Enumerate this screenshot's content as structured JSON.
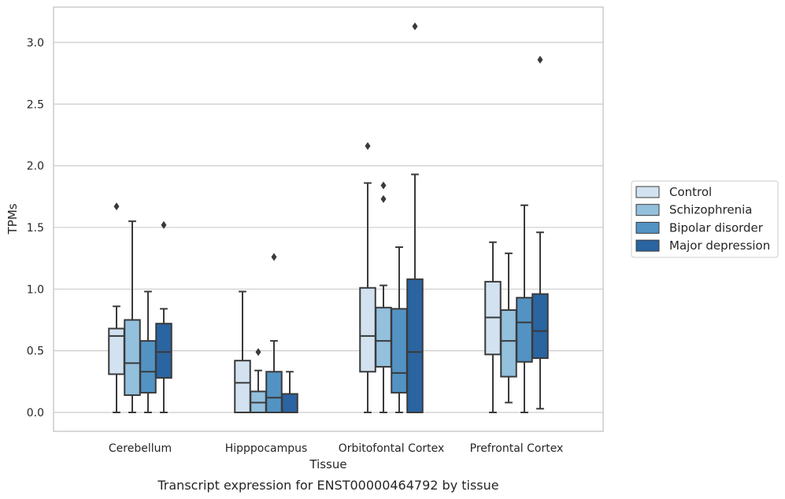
{
  "caption": "Transcript expression for ENST00000464792 by tissue",
  "colors": {
    "Control": "#d2e2f0",
    "Schizophrenia": "#93c0dd",
    "Bipolar disorder": "#5293c4",
    "Major depression": "#2a64a1",
    "stroke": "#3a3a3a",
    "grid": "#cccccc",
    "background": "#ffffff"
  },
  "chart_data": {
    "type": "boxplot",
    "title": "",
    "xlabel": "Tissue",
    "ylabel": "TPMs",
    "ylim": [
      -0.15,
      3.3
    ],
    "yticks": [
      0.0,
      0.5,
      1.0,
      1.5,
      2.0,
      2.5,
      3.0
    ],
    "ytick_labels": [
      "0.0",
      "0.5",
      "1.0",
      "1.5",
      "2.0",
      "2.5",
      "3.0"
    ],
    "grid": true,
    "legend_position": "right",
    "categories": [
      "Cerebellum",
      "Hipppocampus",
      "Orbitofontal Cortex",
      "Prefrontal Cortex"
    ],
    "series": [
      {
        "name": "Control",
        "boxes": [
          {
            "whisker_low": 0.0,
            "q1": 0.31,
            "median": 0.62,
            "q3": 0.68,
            "whisker_high": 0.86,
            "outliers": [
              1.67
            ]
          },
          {
            "whisker_low": 0.0,
            "q1": 0.0,
            "median": 0.24,
            "q3": 0.42,
            "whisker_high": 0.98,
            "outliers": []
          },
          {
            "whisker_low": 0.0,
            "q1": 0.33,
            "median": 0.62,
            "q3": 1.01,
            "whisker_high": 1.86,
            "outliers": [
              2.16
            ]
          },
          {
            "whisker_low": 0.0,
            "q1": 0.47,
            "median": 0.77,
            "q3": 1.06,
            "whisker_high": 1.38,
            "outliers": []
          }
        ]
      },
      {
        "name": "Schizophrenia",
        "boxes": [
          {
            "whisker_low": 0.0,
            "q1": 0.14,
            "median": 0.4,
            "q3": 0.75,
            "whisker_high": 1.55,
            "outliers": []
          },
          {
            "whisker_low": 0.0,
            "q1": 0.0,
            "median": 0.08,
            "q3": 0.17,
            "whisker_high": 0.34,
            "outliers": [
              0.49
            ]
          },
          {
            "whisker_low": 0.0,
            "q1": 0.37,
            "median": 0.58,
            "q3": 0.85,
            "whisker_high": 1.03,
            "outliers": [
              1.73,
              1.84
            ]
          },
          {
            "whisker_low": 0.08,
            "q1": 0.29,
            "median": 0.58,
            "q3": 0.83,
            "whisker_high": 1.29,
            "outliers": []
          }
        ]
      },
      {
        "name": "Bipolar disorder",
        "boxes": [
          {
            "whisker_low": 0.0,
            "q1": 0.16,
            "median": 0.33,
            "q3": 0.58,
            "whisker_high": 0.98,
            "outliers": []
          },
          {
            "whisker_low": 0.0,
            "q1": 0.0,
            "median": 0.12,
            "q3": 0.33,
            "whisker_high": 0.58,
            "outliers": [
              1.26
            ]
          },
          {
            "whisker_low": 0.0,
            "q1": 0.16,
            "median": 0.32,
            "q3": 0.84,
            "whisker_high": 1.34,
            "outliers": []
          },
          {
            "whisker_low": 0.0,
            "q1": 0.41,
            "median": 0.73,
            "q3": 0.93,
            "whisker_high": 1.68,
            "outliers": []
          }
        ]
      },
      {
        "name": "Major depression",
        "boxes": [
          {
            "whisker_low": 0.0,
            "q1": 0.28,
            "median": 0.49,
            "q3": 0.72,
            "whisker_high": 0.84,
            "outliers": [
              1.52
            ]
          },
          {
            "whisker_low": 0.0,
            "q1": 0.0,
            "median": 0.0,
            "q3": 0.15,
            "whisker_high": 0.33,
            "outliers": []
          },
          {
            "whisker_low": 0.0,
            "q1": 0.0,
            "median": 0.49,
            "q3": 1.08,
            "whisker_high": 1.93,
            "outliers": [
              3.13
            ]
          },
          {
            "whisker_low": 0.03,
            "q1": 0.44,
            "median": 0.66,
            "q3": 0.96,
            "whisker_high": 1.46,
            "outliers": [
              2.86
            ]
          }
        ]
      }
    ]
  }
}
